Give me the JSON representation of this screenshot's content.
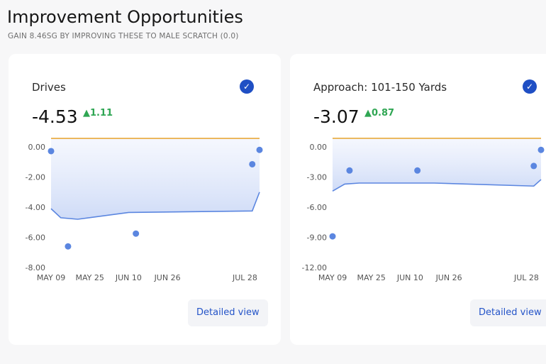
{
  "header": {
    "title": "Improvement Opportunities",
    "subtitle": "GAIN 8.46SG BY IMPROVING THESE TO MALE SCRATCH (0.0)"
  },
  "colors": {
    "target_line": "#e8a93a",
    "trend_line": "#5b86e0",
    "dot": "#5b86e0",
    "positive": "#2fa653",
    "check": "#1f4fc4"
  },
  "cards": [
    {
      "name": "Drives",
      "value": "-4.53",
      "delta": "1.11",
      "delta_icon": "triangle-up-icon",
      "check_icon": "check-circle-icon",
      "button": "Detailed view"
    },
    {
      "name": "Approach: 101-150 Yards",
      "value": "-3.07",
      "delta": "0.87",
      "delta_icon": "triangle-up-icon",
      "check_icon": "check-circle-icon",
      "button": "Detailed view"
    }
  ],
  "chart_data": [
    {
      "type": "scatter",
      "x_ticks": [
        "MAY 09",
        "MAY 25",
        "JUN 10",
        "JUN 26",
        "JUL 28"
      ],
      "x_tick_dates": [
        "2024-05-09",
        "2024-05-25",
        "2024-06-10",
        "2024-06-26",
        "2024-07-28"
      ],
      "y_ticks": [
        "0.00",
        "-2.00",
        "-4.00",
        "-6.00",
        "-8.00"
      ],
      "ylim": [
        -8,
        0
      ],
      "xlim": [
        "2024-05-09",
        "2024-08-03"
      ],
      "target": 0.56,
      "points": [
        {
          "x": "2024-05-09",
          "y": -0.28
        },
        {
          "x": "2024-05-16",
          "y": -6.6
        },
        {
          "x": "2024-06-13",
          "y": -5.75
        },
        {
          "x": "2024-07-31",
          "y": -1.15
        },
        {
          "x": "2024-08-03",
          "y": -0.2
        }
      ],
      "trend": [
        {
          "x": "2024-05-09",
          "y": -4.1
        },
        {
          "x": "2024-05-13",
          "y": -4.7
        },
        {
          "x": "2024-05-20",
          "y": -4.8
        },
        {
          "x": "2024-06-10",
          "y": -4.35
        },
        {
          "x": "2024-07-31",
          "y": -4.25
        },
        {
          "x": "2024-08-03",
          "y": -3.0
        }
      ]
    },
    {
      "type": "scatter",
      "x_ticks": [
        "MAY 09",
        "MAY 25",
        "JUN 10",
        "JUN 26",
        "JUL 28"
      ],
      "x_tick_dates": [
        "2024-05-09",
        "2024-05-25",
        "2024-06-10",
        "2024-06-26",
        "2024-07-28"
      ],
      "y_ticks": [
        "0.00",
        "-3.00",
        "-6.00",
        "-9.00",
        "-12.00"
      ],
      "ylim": [
        -12,
        0
      ],
      "xlim": [
        "2024-05-09",
        "2024-08-03"
      ],
      "target": 0.85,
      "points": [
        {
          "x": "2024-05-09",
          "y": -8.9
        },
        {
          "x": "2024-05-16",
          "y": -2.35
        },
        {
          "x": "2024-06-13",
          "y": -2.35
        },
        {
          "x": "2024-07-31",
          "y": -1.9
        },
        {
          "x": "2024-08-03",
          "y": -0.3
        }
      ],
      "trend": [
        {
          "x": "2024-05-09",
          "y": -4.4
        },
        {
          "x": "2024-05-14",
          "y": -3.7
        },
        {
          "x": "2024-05-20",
          "y": -3.6
        },
        {
          "x": "2024-06-20",
          "y": -3.6
        },
        {
          "x": "2024-07-31",
          "y": -3.9
        },
        {
          "x": "2024-08-03",
          "y": -3.25
        }
      ]
    }
  ]
}
